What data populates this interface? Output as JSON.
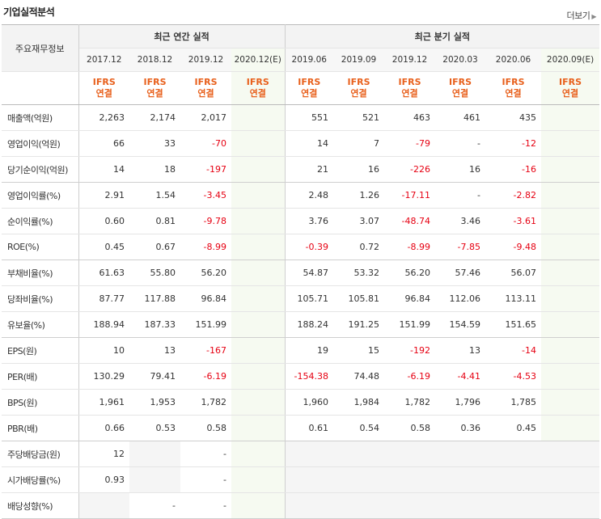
{
  "section": {
    "title": "기업실적분석",
    "more_label": "더보기"
  },
  "header": {
    "corner_label": "주요재무정보",
    "annual_title": "최근 연간 실적",
    "quarter_title": "최근 분기 실적",
    "annual_periods": [
      "2017.12",
      "2018.12",
      "2019.12",
      "2020.12(E)"
    ],
    "quarter_periods": [
      "2019.06",
      "2019.09",
      "2019.12",
      "2020.03",
      "2020.06",
      "2020.09(E)"
    ],
    "ifrs_top": "IFRS",
    "ifrs_bottom": "연결"
  },
  "colors": {
    "accent_orange": "#e8601c",
    "negative_red": "#e60012",
    "estimate_bg": "#f6faf1"
  },
  "rows": [
    {
      "label": "매출액(억원)",
      "annual": [
        "2,263",
        "2,174",
        "2,017",
        ""
      ],
      "quarter": [
        "551",
        "521",
        "463",
        "461",
        "435",
        ""
      ]
    },
    {
      "label": "영업이익(억원)",
      "annual": [
        "66",
        "33",
        "-70",
        ""
      ],
      "quarter": [
        "14",
        "7",
        "-79",
        "-",
        "-12",
        ""
      ]
    },
    {
      "label": "당기순이익(억원)",
      "annual": [
        "14",
        "18",
        "-197",
        ""
      ],
      "quarter": [
        "21",
        "16",
        "-226",
        "16",
        "-16",
        ""
      ]
    },
    {
      "label": "영업이익률(%)",
      "annual": [
        "2.91",
        "1.54",
        "-3.45",
        ""
      ],
      "quarter": [
        "2.48",
        "1.26",
        "-17.11",
        "-",
        "-2.82",
        ""
      ]
    },
    {
      "label": "순이익률(%)",
      "annual": [
        "0.60",
        "0.81",
        "-9.78",
        ""
      ],
      "quarter": [
        "3.76",
        "3.07",
        "-48.74",
        "3.46",
        "-3.61",
        ""
      ]
    },
    {
      "label": "ROE(%)",
      "annual": [
        "0.45",
        "0.67",
        "-8.99",
        ""
      ],
      "quarter": [
        "-0.39",
        "0.72",
        "-8.99",
        "-7.85",
        "-9.48",
        ""
      ]
    },
    {
      "label": "부채비율(%)",
      "annual": [
        "61.63",
        "55.80",
        "56.20",
        ""
      ],
      "quarter": [
        "54.87",
        "53.32",
        "56.20",
        "57.46",
        "56.07",
        ""
      ]
    },
    {
      "label": "당좌비율(%)",
      "annual": [
        "87.77",
        "117.88",
        "96.84",
        ""
      ],
      "quarter": [
        "105.71",
        "105.81",
        "96.84",
        "112.06",
        "113.11",
        ""
      ]
    },
    {
      "label": "유보율(%)",
      "annual": [
        "188.94",
        "187.33",
        "151.99",
        ""
      ],
      "quarter": [
        "188.24",
        "191.25",
        "151.99",
        "154.59",
        "151.65",
        ""
      ]
    },
    {
      "label": "EPS(원)",
      "annual": [
        "10",
        "13",
        "-167",
        ""
      ],
      "quarter": [
        "19",
        "15",
        "-192",
        "13",
        "-14",
        ""
      ]
    },
    {
      "label": "PER(배)",
      "annual": [
        "130.29",
        "79.41",
        "-6.19",
        ""
      ],
      "quarter": [
        "-154.38",
        "74.48",
        "-6.19",
        "-4.41",
        "-4.53",
        ""
      ]
    },
    {
      "label": "BPS(원)",
      "annual": [
        "1,961",
        "1,953",
        "1,782",
        ""
      ],
      "quarter": [
        "1,960",
        "1,984",
        "1,782",
        "1,796",
        "1,785",
        ""
      ]
    },
    {
      "label": "PBR(배)",
      "annual": [
        "0.66",
        "0.53",
        "0.58",
        ""
      ],
      "quarter": [
        "0.61",
        "0.54",
        "0.58",
        "0.36",
        "0.45",
        ""
      ]
    },
    {
      "label": "주당배당금(원)",
      "annual": [
        "12",
        "",
        "-",
        ""
      ],
      "quarter": [
        "",
        "",
        "",
        "",
        "",
        ""
      ]
    },
    {
      "label": "시가배당률(%)",
      "annual": [
        "0.93",
        "",
        "-",
        ""
      ],
      "quarter": [
        "",
        "",
        "",
        "",
        "",
        ""
      ]
    },
    {
      "label": "배당성향(%)",
      "annual": [
        "",
        "-",
        "-",
        ""
      ],
      "quarter": [
        "",
        "",
        "",
        "",
        "",
        ""
      ]
    }
  ]
}
